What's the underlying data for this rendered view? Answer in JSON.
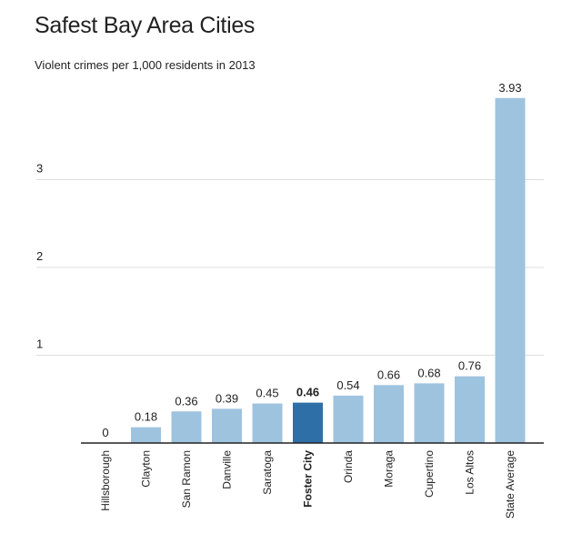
{
  "title": "Safest Bay Area Cities",
  "subtitle": "Violent crimes per 1,000 residents in 2013",
  "colors": {
    "bar": "#9ec3df",
    "highlight": "#2e6fa8",
    "grid": "#dddddd",
    "axis": "#222222"
  },
  "chart_data": {
    "type": "bar",
    "title": "Safest Bay Area Cities",
    "subtitle": "Violent crimes per 1,000 residents in 2013",
    "categories": [
      "Hillsborough",
      "Clayton",
      "San Ramon",
      "Danville",
      "Saratoga",
      "Foster City",
      "Orinda",
      "Moraga",
      "Cupertino",
      "Los Altos",
      "State Average"
    ],
    "values": [
      0,
      0.18,
      0.36,
      0.39,
      0.45,
      0.46,
      0.54,
      0.66,
      0.68,
      0.76,
      3.93
    ],
    "value_labels": [
      "0",
      "0.18",
      "0.36",
      "0.39",
      "0.45",
      "0.46",
      "0.54",
      "0.66",
      "0.68",
      "0.76",
      "3.93"
    ],
    "highlight": "Foster City",
    "yticks": [
      1,
      2,
      3
    ],
    "ylim": [
      0,
      4
    ],
    "grid": true,
    "xlabel": "",
    "ylabel": ""
  }
}
